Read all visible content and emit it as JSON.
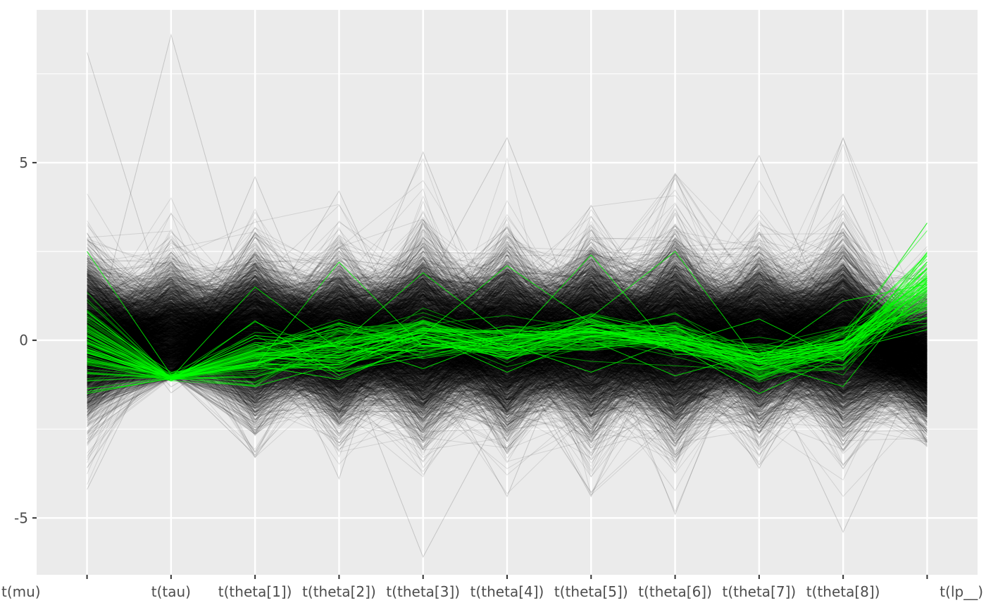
{
  "chart_data": {
    "type": "line",
    "subtype": "parallel-coordinates",
    "title": "",
    "xlabel": "",
    "ylabel": "",
    "categories": [
      "t(mu)",
      "t(tau)",
      "t(theta[1])",
      "t(theta[2])",
      "t(theta[3])",
      "t(theta[4])",
      "t(theta[5])",
      "t(theta[6])",
      "t(theta[7])",
      "t(theta[8])",
      "t(lp__)"
    ],
    "y_ticks": [
      -5,
      0,
      5
    ],
    "y_tick_labels": [
      "-5",
      "0",
      "5"
    ],
    "ylim": [
      -6.6,
      9.3
    ],
    "grid": true,
    "legend": "none",
    "background": "#ebebeb",
    "series_summary": [
      {
        "name": "",
        "color": "#000000",
        "draws": 4000,
        "mean": [
          0.0,
          -0.2,
          0.1,
          0.0,
          0.0,
          0.0,
          0.0,
          0.0,
          0.0,
          0.0,
          -0.5
        ],
        "sd": [
          1.0,
          1.0,
          1.0,
          1.0,
          1.1,
          1.1,
          1.1,
          1.2,
          1.0,
          1.1,
          0.8
        ],
        "min": [
          -4.2,
          -1.1,
          -3.3,
          -3.9,
          -6.1,
          -4.4,
          -4.4,
          -4.9,
          -3.6,
          -5.4,
          -3.0
        ],
        "max": [
          8.1,
          8.6,
          4.6,
          4.2,
          5.3,
          5.7,
          3.8,
          4.7,
          5.2,
          5.7,
          3.3
        ]
      },
      {
        "name": "",
        "color": "#00ff00",
        "draws": 60,
        "mean": [
          -0.2,
          -1.05,
          -0.5,
          -0.2,
          0.1,
          -0.1,
          0.2,
          0.0,
          -0.6,
          -0.2,
          1.5
        ],
        "sd": [
          0.6,
          0.05,
          0.4,
          0.4,
          0.3,
          0.3,
          0.3,
          0.3,
          0.3,
          0.3,
          0.5
        ],
        "min": [
          -1.5,
          -1.15,
          -1.3,
          -1.1,
          -0.8,
          -0.9,
          -0.9,
          -1.0,
          -1.5,
          -1.3,
          0.3
        ],
        "max": [
          2.5,
          -0.9,
          1.5,
          2.2,
          1.9,
          2.1,
          2.4,
          2.5,
          0.6,
          1.1,
          3.3
        ]
      }
    ]
  }
}
